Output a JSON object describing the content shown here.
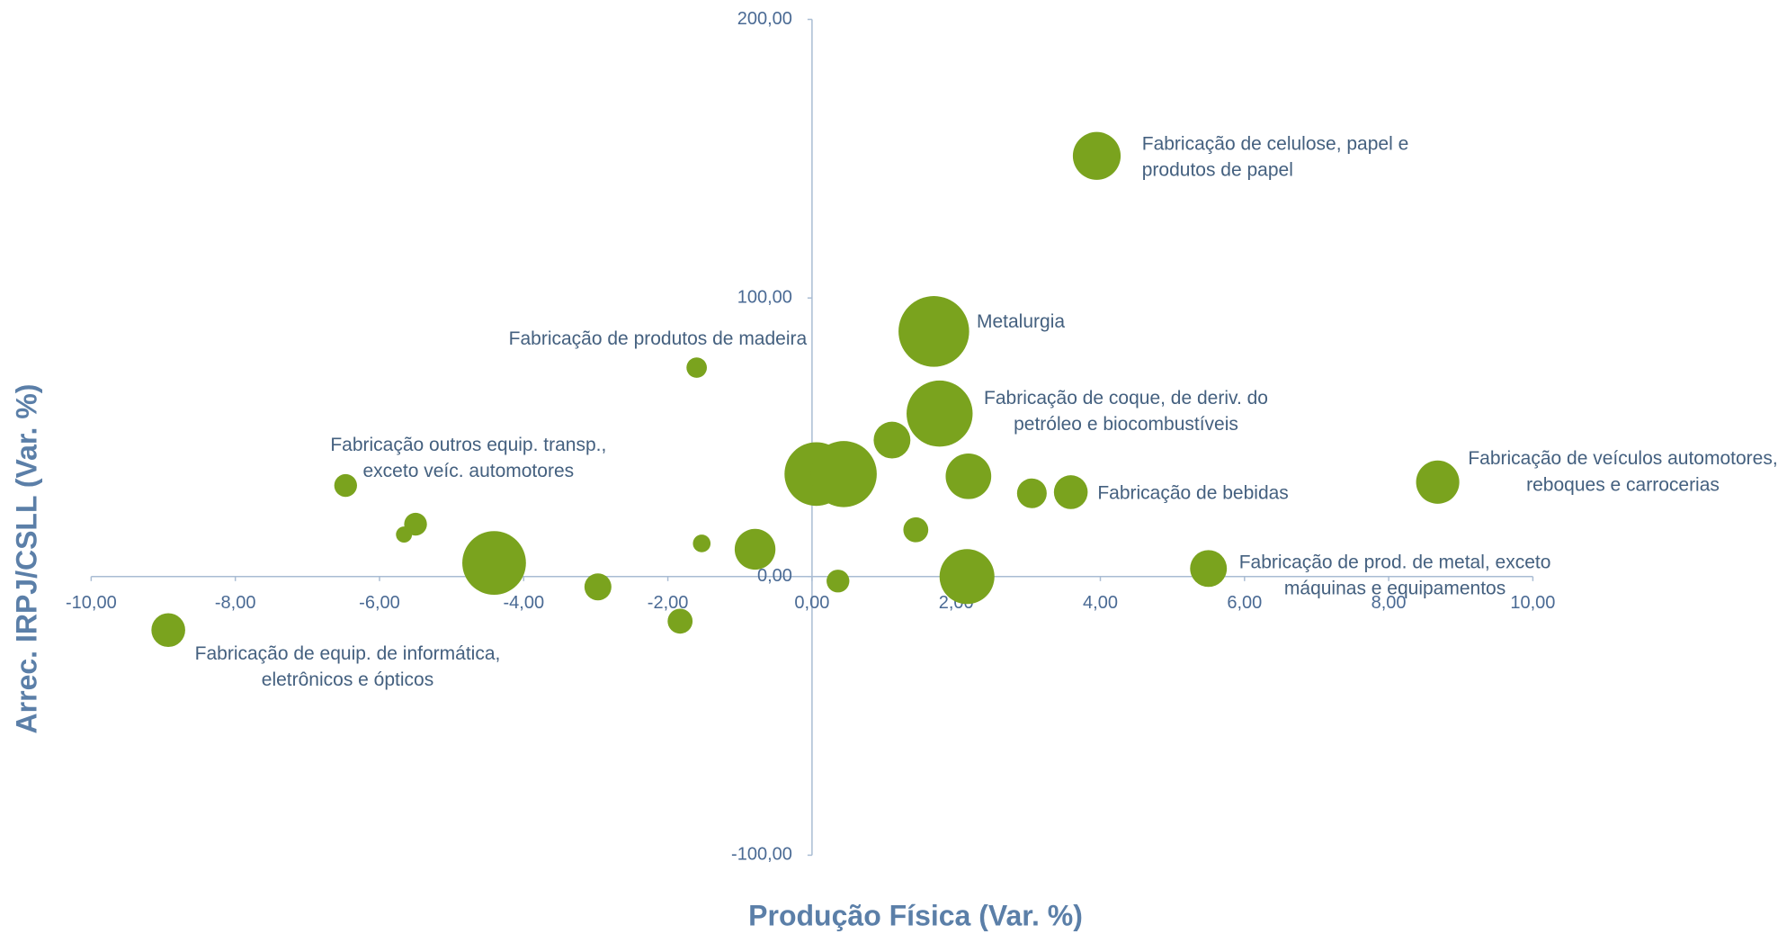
{
  "chart_data": {
    "type": "bubble",
    "x_label": "Produção Física (Var. %)",
    "y_label": "Arrec. IRPJ/CSLL (Var. %)",
    "color": "#7aa31e",
    "xlim": [
      -10,
      10
    ],
    "ylim": [
      -100,
      200
    ],
    "xticks": [
      {
        "value": -10,
        "label": "-10,00"
      },
      {
        "value": -8,
        "label": "-8,00"
      },
      {
        "value": -6,
        "label": "-6,00"
      },
      {
        "value": -4,
        "label": "-4,00"
      },
      {
        "value": -2,
        "label": "-2,00"
      },
      {
        "value": 0,
        "label": "0,00"
      },
      {
        "value": 2,
        "label": "2,00"
      },
      {
        "value": 4,
        "label": "4,00"
      },
      {
        "value": 6,
        "label": "6,00"
      },
      {
        "value": 8,
        "label": "8,00"
      },
      {
        "value": 10,
        "label": "10,00"
      }
    ],
    "yticks": [
      {
        "value": -100,
        "label": "-100,00"
      },
      {
        "value": 0,
        "label": "0,00"
      },
      {
        "value": 100,
        "label": "100,00"
      },
      {
        "value": 200,
        "label": "200,00"
      }
    ],
    "x": [
      3.95,
      1.69,
      -1.6,
      1.77,
      1.11,
      0.06,
      0.44,
      2.17,
      3.05,
      3.59,
      8.68,
      -6.47,
      -5.5,
      -5.66,
      -1.53,
      -0.79,
      1.44,
      -4.41,
      -2.97,
      0.36,
      2.15,
      5.5,
      -1.83,
      -8.93
    ],
    "values": [
      151,
      88,
      75,
      58.5,
      49,
      36.8,
      36.8,
      36,
      29.9,
      30.3,
      33.9,
      32.7,
      18.8,
      15.1,
      11.9,
      9.8,
      16.8,
      4.9,
      -3.7,
      -1.6,
      0,
      2.9,
      -16,
      -19.2
    ],
    "sizes": [
      44,
      96,
      8,
      84,
      26,
      78,
      84,
      40,
      17,
      22,
      36,
      10,
      10,
      5,
      6,
      32,
      12,
      78,
      14,
      10,
      58,
      26,
      12,
      22
    ],
    "labels": [
      [
        "Fabricação de celulose, papel e",
        "produtos de papel"
      ],
      [
        "Metalurgia"
      ],
      [
        "Fabricação de produtos de madeira"
      ],
      [
        "Fabricação de coque, de deriv. do",
        "petróleo e biocombustíveis"
      ],
      null,
      null,
      null,
      null,
      null,
      [
        "Fabricação de bebidas"
      ],
      [
        "Fabricação de veículos automotores,",
        "reboques e carrocerias"
      ],
      [
        "Fabricação outros equip. transp.,",
        "exceto veíc. automotores"
      ],
      null,
      null,
      null,
      null,
      null,
      null,
      null,
      null,
      null,
      [
        "Fabricação de prod. de metal, exceto",
        "máquinas e equipamentos"
      ],
      null,
      [
        "Fabricação de equip. de informática,",
        "eletrônicos e ópticos"
      ]
    ]
  }
}
